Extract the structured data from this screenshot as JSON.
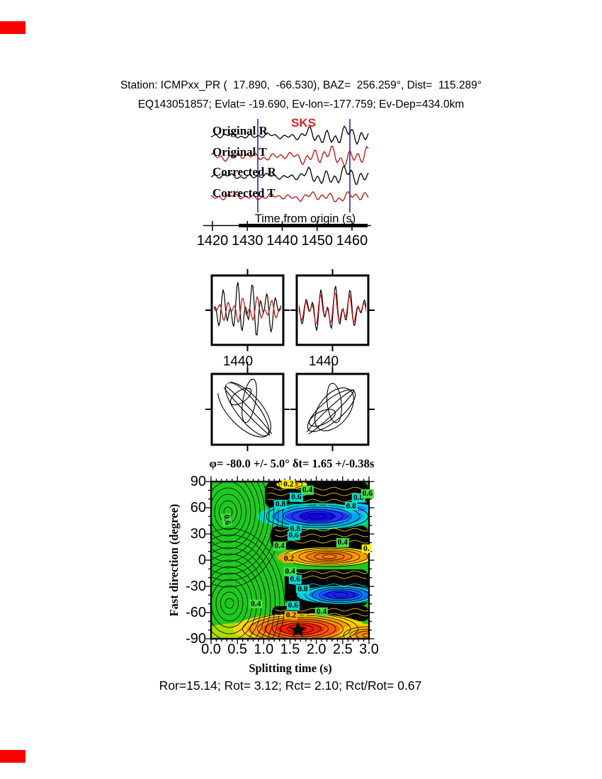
{
  "header": {
    "line1": "Station: ICMPxx_PR (  17.890,  -66.530), BAZ=  256.259°, Dist=  115.289°",
    "line2": "EQ143051857; Evlat= -19.690, Ev-lon=-177.759; Ev-Dep=434.0km"
  },
  "waveforms": {
    "phase_label": "SKS",
    "traces": [
      {
        "label": "Original R",
        "color": "#000000"
      },
      {
        "label": "Original T",
        "color": "#bb1111"
      },
      {
        "label": "Corrected R",
        "color": "#000000"
      },
      {
        "label": "Corrected T",
        "color": "#bb1111"
      }
    ],
    "axis_label": "Time from origin (s)",
    "time_ticks": [
      "1420",
      "1430",
      "1440",
      "1450",
      "1460"
    ]
  },
  "zoom_panels": {
    "panels": [
      {
        "tick": "1440"
      },
      {
        "tick": "1440"
      }
    ]
  },
  "contour": {
    "title": "φ= -80.0 +/- 5.0° δt= 1.65 +/-0.38s",
    "ylabel": "Fast direction (degree)",
    "xlabel": "Splitting time (s)",
    "yticks": [
      "90",
      "60",
      "30",
      "0",
      "-30",
      "-60",
      "-90"
    ],
    "xticks": [
      "0.0",
      "0.5",
      "1.0",
      "1.5",
      "2.0",
      "2.5",
      "3.0"
    ],
    "contour_labels": [
      {
        "t": 1.47,
        "d": 87,
        "text": "0.2",
        "bg": "#ffee00"
      },
      {
        "t": 1.83,
        "d": 80,
        "text": "0.4",
        "bg": "#44e044"
      },
      {
        "t": 1.62,
        "d": 72,
        "text": "0.6",
        "bg": "#00ddd0"
      },
      {
        "t": 1.32,
        "d": 64,
        "text": "0.8",
        "bg": "#00ddd0"
      },
      {
        "t": 2.8,
        "d": 71,
        "text": "0.8",
        "bg": "#00ddd0"
      },
      {
        "t": 2.66,
        "d": 62,
        "text": "0.8",
        "bg": "#00ddd0"
      },
      {
        "t": 2.97,
        "d": 76,
        "text": "0.6",
        "bg": "#44e044"
      },
      {
        "t": 0.3,
        "d": 46,
        "text": "0.6",
        "bg": "#44e044",
        "rot": 80
      },
      {
        "t": 1.6,
        "d": 36,
        "text": "0.8",
        "bg": "#00ddd0"
      },
      {
        "t": 1.57,
        "d": 28,
        "text": "0.6",
        "bg": "#00ddd0"
      },
      {
        "t": 1.3,
        "d": 16,
        "text": "0.4",
        "bg": "#44e044"
      },
      {
        "t": 2.5,
        "d": 20,
        "text": "0.4",
        "bg": "#44e044"
      },
      {
        "t": 2.95,
        "d": 13,
        "text": "0.",
        "bg": "#ffee00"
      },
      {
        "t": 1.48,
        "d": 2,
        "text": "0.2",
        "bg": "#ffaa00"
      },
      {
        "t": 1.5,
        "d": -13,
        "text": "0.4",
        "bg": "#44e044"
      },
      {
        "t": 1.6,
        "d": -22,
        "text": "0.6",
        "bg": "#00ddd0"
      },
      {
        "t": 1.74,
        "d": -33,
        "text": "0.8",
        "bg": "#00ddd0"
      },
      {
        "t": 0.85,
        "d": -50,
        "text": "0.4",
        "bg": "#44e044"
      },
      {
        "t": 1.56,
        "d": -52,
        "text": "0.6",
        "bg": "#00ddd0"
      },
      {
        "t": 1.52,
        "d": -63,
        "text": "0.2",
        "bg": "#ffaa00"
      },
      {
        "t": 2.1,
        "d": -59,
        "text": "0.4",
        "bg": "#44e044"
      }
    ],
    "star": {
      "t": 1.65,
      "d": -80
    }
  },
  "footer": {
    "stats": "Ror=15.14; Rot= 3.12; Rct= 2.10; Rct/Rot= 0.67"
  },
  "colors": {
    "trace_r": "#000000",
    "trace_t": "#bb1111",
    "phase_marker": "#dd2222",
    "pick_line": "#3434bb",
    "corner_mark": "#ff0000",
    "star": "#000000"
  },
  "chart_data": {
    "type": "heatmap",
    "title": "φ= -80.0 +/- 5.0° δt= 1.65 +/-0.38s",
    "xlabel": "Splitting time (s)",
    "ylabel": "Fast direction (degree)",
    "xlim": [
      0.0,
      3.0
    ],
    "ylim": [
      -90,
      90
    ],
    "xticks": [
      0.0,
      0.5,
      1.0,
      1.5,
      2.0,
      2.5,
      3.0
    ],
    "yticks": [
      90,
      60,
      30,
      0,
      -30,
      -60,
      -90
    ],
    "labeled_contour_levels": [
      0.2,
      0.4,
      0.6,
      0.8
    ],
    "best_solution": {
      "fast_direction_deg": -80.0,
      "fast_direction_err_deg": 5.0,
      "splitting_time_s": 1.65,
      "splitting_time_err_s": 0.38,
      "marker": "black star at (1.65, -80)"
    },
    "station_header": {
      "station": "ICMPxx_PR",
      "lat": 17.89,
      "lon": -66.53,
      "baz_deg": 256.259,
      "dist_deg": 115.289,
      "event_id": "EQ143051857",
      "ev_lat": -19.69,
      "ev_lon": -177.759,
      "ev_dep_km": 434.0
    },
    "waveform_time_axis": {
      "label": "Time from origin (s)",
      "ticks_s": [
        1420,
        1430,
        1440,
        1450,
        1460
      ],
      "phase": "SKS"
    },
    "zoom_window_ticks_s": [
      1440,
      1440
    ],
    "result_stats": {
      "Ror": 15.14,
      "Rot": 3.12,
      "Rct": 2.1,
      "Rct_over_Rot": 0.67
    }
  }
}
